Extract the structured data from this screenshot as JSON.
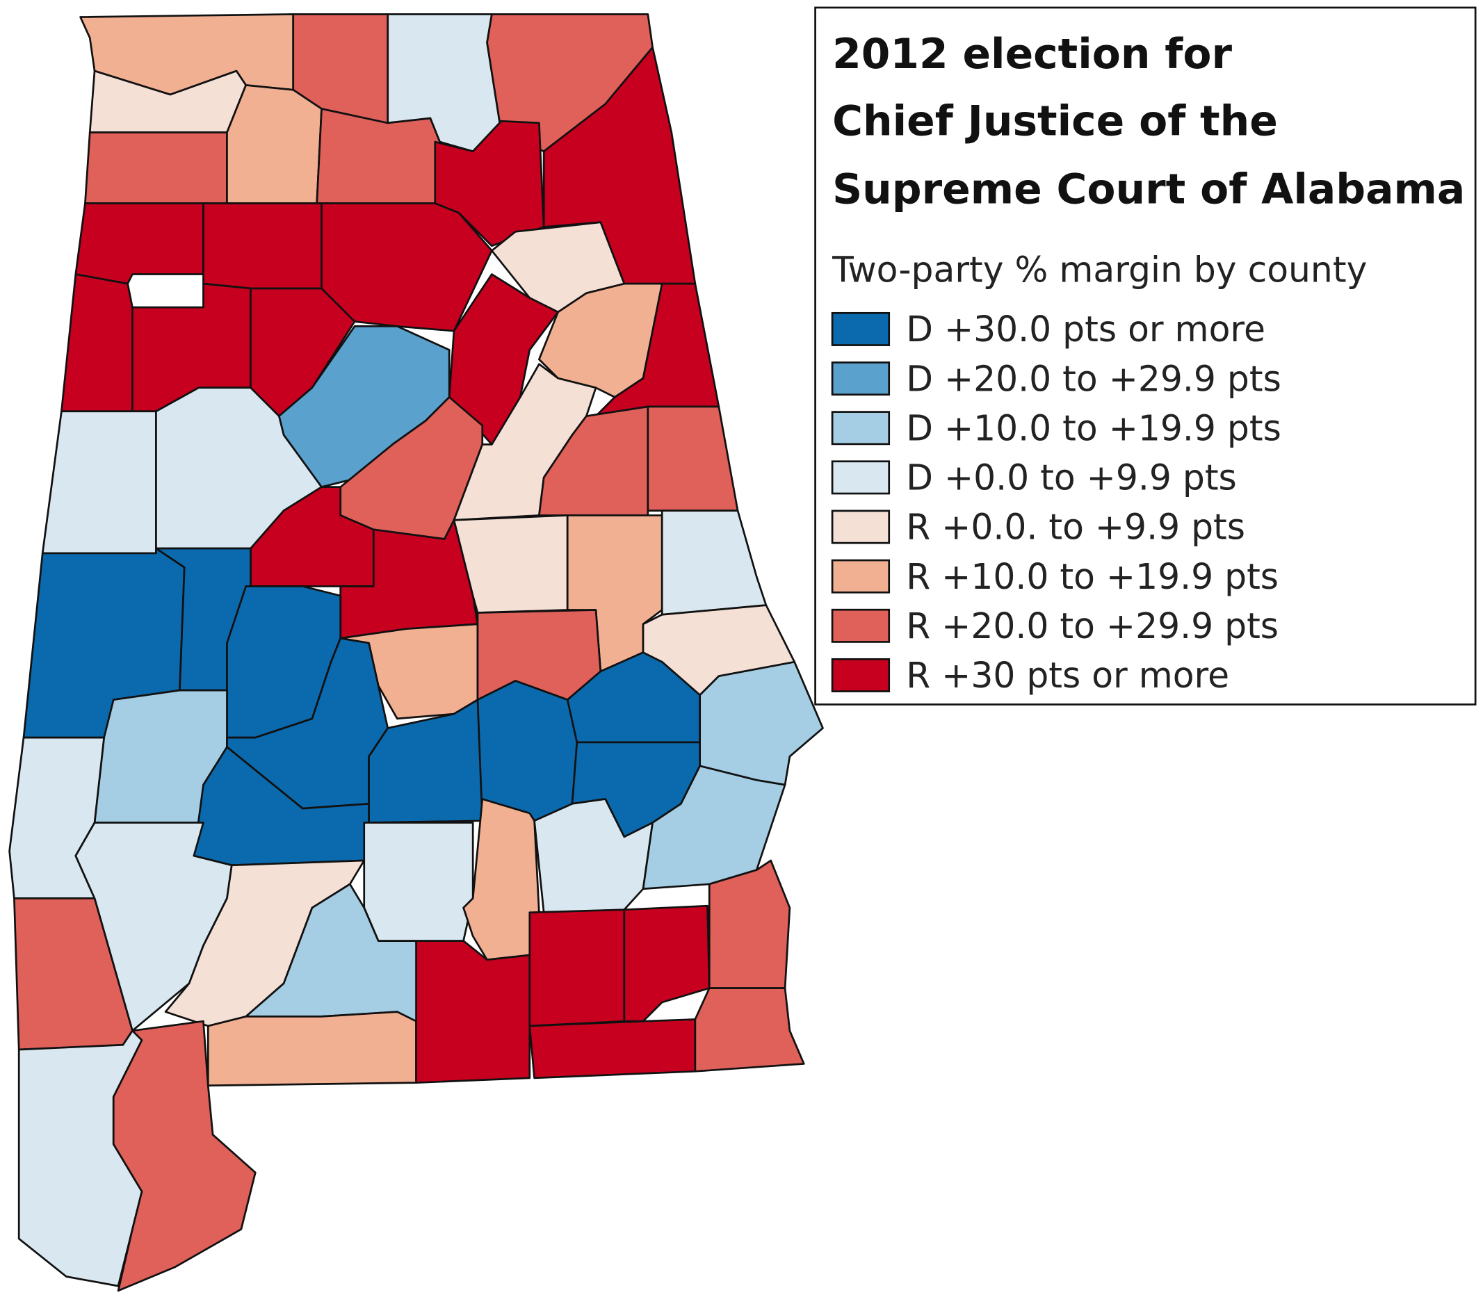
{
  "title": [
    "2012 election for",
    "Chief Justice of the",
    "Supreme Court of Alabama"
  ],
  "subtitle": "Two-party % margin by county",
  "legend": [
    {
      "label": "D +30.0 pts or more",
      "color": "#0b6aad"
    },
    {
      "label": "D +20.0 to +29.9 pts",
      "color": "#5aa1cd"
    },
    {
      "label": "D +10.0 to +19.9 pts",
      "color": "#a5cde3"
    },
    {
      "label": "D +0.0 to +9.9 pts",
      "color": "#d9e8f0"
    },
    {
      "label": "R +0.0. to +9.9 pts",
      "color": "#f5e0d6"
    },
    {
      "label": "R +10.0 to +19.9 pts",
      "color": "#f2b093"
    },
    {
      "label": "R +20.0 to +29.9 pts",
      "color": "#e0605a"
    },
    {
      "label": "R +30 pts or more",
      "color": "#c8001f"
    }
  ]
}
